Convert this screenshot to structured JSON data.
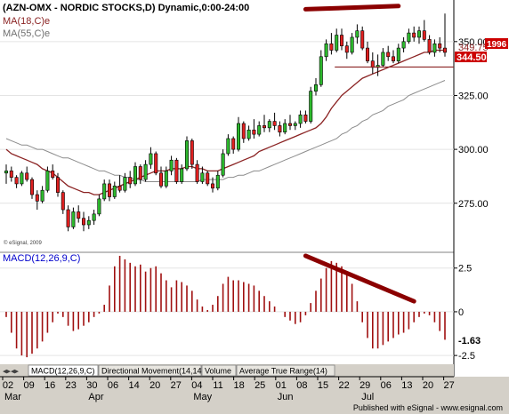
{
  "chart_data": [
    {
      "type": "candlestick",
      "title": "(AZN-OMX - NORDIC STOCKS,D) Dynamic,0:00-24:00",
      "ylim": [
        258,
        366
      ],
      "y_ticks": [
        {
          "value": 350,
          "label": "350.00"
        },
        {
          "value": 325,
          "label": "325.00"
        },
        {
          "value": 300,
          "label": "300.00"
        },
        {
          "value": 275,
          "label": "275.00"
        }
      ],
      "price_labels": [
        {
          "value": 347.4,
          "label": "349.75",
          "color": "#8b2323"
        },
        {
          "value": 346.2,
          "label": "344.50",
          "color": "#cc0000",
          "text_color": "#ffffff"
        },
        {
          "value": 349.1,
          "label": "1996",
          "color": "#cc0000",
          "text_color": "#ffffff"
        }
      ],
      "legend": [
        {
          "label": "MA(18,C)e",
          "color": "#8b2323"
        },
        {
          "label": "MA(55,C)e",
          "color": "#808080"
        }
      ],
      "watermark": "© eSignal, 2009",
      "candles": [
        [
          289,
          293,
          284,
          290
        ],
        [
          290,
          292,
          285,
          287
        ],
        [
          287,
          288,
          282,
          284
        ],
        [
          284,
          290,
          283,
          289
        ],
        [
          289,
          292,
          285,
          286
        ],
        [
          286,
          287,
          277,
          279
        ],
        [
          279,
          281,
          272,
          276
        ],
        [
          276,
          283,
          275,
          281
        ],
        [
          281,
          292,
          280,
          290
        ],
        [
          290,
          293,
          286,
          287
        ],
        [
          287,
          289,
          278,
          280
        ],
        [
          280,
          281,
          270,
          272
        ],
        [
          272,
          274,
          262,
          264
        ],
        [
          264,
          273,
          263,
          271
        ],
        [
          271,
          274,
          266,
          268
        ],
        [
          268,
          271,
          262,
          265
        ],
        [
          265,
          269,
          263,
          267
        ],
        [
          267,
          272,
          265,
          270
        ],
        [
          270,
          279,
          269,
          277
        ],
        [
          277,
          286,
          276,
          284
        ],
        [
          284,
          286,
          276,
          278
        ],
        [
          278,
          285,
          277,
          283
        ],
        [
          283,
          288,
          280,
          281
        ],
        [
          281,
          289,
          280,
          287
        ],
        [
          287,
          290,
          282,
          284
        ],
        [
          284,
          294,
          283,
          292
        ],
        [
          292,
          293,
          284,
          286
        ],
        [
          286,
          295,
          285,
          293
        ],
        [
          293,
          301,
          291,
          298
        ],
        [
          298,
          299,
          288,
          289
        ],
        [
          289,
          292,
          282,
          283
        ],
        [
          283,
          292,
          282,
          290
        ],
        [
          290,
          297,
          288,
          295
        ],
        [
          295,
          296,
          284,
          285
        ],
        [
          285,
          293,
          284,
          291
        ],
        [
          291,
          306,
          290,
          304
        ],
        [
          304,
          305,
          291,
          293
        ],
        [
          293,
          295,
          284,
          285
        ],
        [
          285,
          292,
          284,
          289
        ],
        [
          289,
          290,
          283,
          284
        ],
        [
          284,
          287,
          280,
          282
        ],
        [
          282,
          290,
          281,
          288
        ],
        [
          288,
          300,
          287,
          298
        ],
        [
          298,
          307,
          297,
          305
        ],
        [
          305,
          306,
          298,
          300
        ],
        [
          300,
          315,
          299,
          312
        ],
        [
          312,
          313,
          303,
          305
        ],
        [
          305,
          311,
          304,
          309
        ],
        [
          309,
          314,
          305,
          307
        ],
        [
          307,
          313,
          306,
          311
        ],
        [
          311,
          316,
          308,
          310
        ],
        [
          310,
          314,
          308,
          313
        ],
        [
          313,
          317,
          309,
          311
        ],
        [
          311,
          313,
          306,
          308
        ],
        [
          308,
          314,
          307,
          312
        ],
        [
          312,
          316,
          309,
          311
        ],
        [
          311,
          313,
          309,
          312
        ],
        [
          312,
          318,
          310,
          316
        ],
        [
          316,
          318,
          312,
          313
        ],
        [
          313,
          329,
          312,
          327
        ],
        [
          327,
          333,
          325,
          330
        ],
        [
          330,
          346,
          329,
          343
        ],
        [
          343,
          351,
          341,
          349
        ],
        [
          349,
          354,
          344,
          346
        ],
        [
          346,
          356,
          345,
          353
        ],
        [
          353,
          356,
          346,
          348
        ],
        [
          348,
          350,
          342,
          345
        ],
        [
          345,
          354,
          344,
          352
        ],
        [
          352,
          358,
          349,
          355
        ],
        [
          355,
          357,
          346,
          347
        ],
        [
          347,
          350,
          340,
          341
        ],
        [
          341,
          345,
          335,
          338
        ],
        [
          338,
          344,
          334,
          339
        ],
        [
          339,
          347,
          338,
          345
        ],
        [
          345,
          348,
          341,
          343
        ],
        [
          343,
          346,
          340,
          341
        ],
        [
          341,
          349,
          340,
          347
        ],
        [
          347,
          352,
          345,
          350
        ],
        [
          350,
          356,
          349,
          354
        ],
        [
          354,
          357,
          350,
          352
        ],
        [
          352,
          357,
          349,
          355
        ],
        [
          355,
          360,
          350,
          351
        ],
        [
          351,
          353,
          344,
          345
        ],
        [
          345,
          351,
          343,
          349
        ],
        [
          349,
          352,
          345,
          347
        ],
        [
          347,
          363,
          343,
          345
        ]
      ],
      "ma18": [
        300,
        298,
        297,
        296,
        295,
        294,
        293,
        291,
        290,
        289,
        287,
        285,
        283,
        282,
        281,
        280,
        280,
        279,
        279,
        280,
        281,
        282,
        283,
        284,
        285,
        286,
        287,
        288,
        289,
        290,
        290,
        290,
        291,
        291,
        291,
        292,
        292,
        291,
        291,
        290,
        290,
        290,
        291,
        292,
        293,
        294,
        295,
        296,
        297,
        299,
        300,
        301,
        302,
        303,
        304,
        305,
        306,
        307,
        308,
        309,
        310,
        312,
        315,
        319,
        322,
        325,
        327,
        329,
        331,
        333,
        334,
        335,
        336,
        337,
        338,
        339,
        340,
        341,
        342,
        343,
        344,
        345,
        345,
        346,
        346,
        346
      ],
      "ma55": [
        305,
        304,
        303,
        302,
        302,
        301,
        300,
        300,
        299,
        298,
        297,
        296,
        296,
        295,
        294,
        293,
        292,
        291,
        290,
        290,
        289,
        288,
        288,
        287,
        287,
        286,
        286,
        285,
        285,
        285,
        285,
        285,
        285,
        285,
        285,
        285,
        285,
        285,
        286,
        286,
        286,
        286,
        286,
        287,
        287,
        288,
        288,
        289,
        290,
        290,
        291,
        292,
        293,
        294,
        295,
        296,
        297,
        298,
        299,
        300,
        301,
        302,
        303,
        304,
        305,
        307,
        308,
        310,
        311,
        313,
        314,
        316,
        317,
        318,
        320,
        321,
        322,
        323,
        325,
        326,
        327,
        328,
        329,
        330,
        331,
        332
      ],
      "support_line": {
        "value": 338.2,
        "from_index": 64
      },
      "trendline": {
        "from": [
          58,
          365
        ],
        "to": [
          76,
          366.5
        ]
      }
    },
    {
      "type": "bar",
      "title": "MACD(12,26,9,C)",
      "ylim": [
        -2.9,
        3.3
      ],
      "y_ticks": [
        {
          "value": 2.5,
          "label": "2.5"
        },
        {
          "value": 0,
          "label": "0"
        },
        {
          "value": -2.5,
          "label": "-2.5"
        }
      ],
      "last_value": {
        "value": -1.63,
        "label": "-1.63"
      },
      "values": [
        -0.3,
        -1.2,
        -2.1,
        -2.5,
        -2.6,
        -2.4,
        -2.1,
        -1.7,
        -1.2,
        -0.6,
        -0.1,
        -0.3,
        -0.8,
        -1.1,
        -1.0,
        -0.8,
        -0.6,
        -0.3,
        -0.1,
        0.4,
        1.5,
        2.6,
        3.2,
        3.0,
        2.8,
        2.6,
        2.7,
        2.3,
        2.5,
        2.6,
        2.2,
        1.8,
        1.4,
        1.8,
        1.7,
        1.5,
        1.2,
        0.7,
        0.3,
        0.1,
        0.4,
        0.9,
        1.6,
        2.0,
        1.8,
        1.8,
        1.7,
        1.6,
        1.5,
        1.2,
        0.9,
        0.6,
        0.3,
        0.0,
        -0.3,
        -0.5,
        -0.7,
        -0.6,
        -0.2,
        0.5,
        1.2,
        1.9,
        2.5,
        2.9,
        2.8,
        2.6,
        2.3,
        1.6,
        0.6,
        -0.6,
        -1.5,
        -2.1,
        -2.1,
        -1.9,
        -1.7,
        -1.5,
        -1.3,
        -1.2,
        -1.0,
        -0.6,
        -0.3,
        -0.1,
        -0.2,
        -0.6,
        -1.1,
        -1.6
      ],
      "trendline": {
        "from": [
          58,
          3.2
        ],
        "to": [
          79,
          0.6
        ]
      }
    }
  ],
  "tabs": [
    {
      "label": "MACD(12,26,9,C)",
      "active": true
    },
    {
      "label": "Directional Movement(14,14)",
      "active": false
    },
    {
      "label": "Volume",
      "active": false
    },
    {
      "label": "Average True Range(14)",
      "active": false
    }
  ],
  "x_axis": {
    "day_ticks": [
      {
        "i": 0,
        "label": "02"
      },
      {
        "i": 5,
        "label": "09"
      },
      {
        "i": 10,
        "label": "16"
      },
      {
        "i": 15,
        "label": "23"
      },
      {
        "i": 20,
        "label": "30"
      },
      {
        "i": 24,
        "label": "06"
      },
      {
        "i": 28,
        "label": "14"
      },
      {
        "i": 33,
        "label": "20"
      },
      {
        "i": 38,
        "label": "27"
      },
      {
        "i": 41,
        "label": "04"
      },
      {
        "i": 46,
        "label": "11"
      },
      {
        "i": 51,
        "label": "18"
      },
      {
        "i": 56,
        "label": "25"
      },
      {
        "i": 60,
        "label": "01"
      },
      {
        "i": 65,
        "label": "08"
      },
      {
        "i": 70,
        "label": "15"
      },
      {
        "i": 75,
        "label": "22"
      },
      {
        "i": 80,
        "label": "29"
      },
      {
        "i": 84,
        "label": "06"
      }
    ],
    "month_labels": [
      {
        "i": 0,
        "label": "Mar"
      },
      {
        "i": 20,
        "label": "Apr"
      },
      {
        "i": 41,
        "label": "May"
      },
      {
        "i": 60,
        "label": "Jun"
      },
      {
        "i": 80,
        "label": "Jul"
      }
    ]
  },
  "day_labels_actual": [
    "02",
    "09",
    "16",
    "23",
    "30",
    "06",
    "14",
    "20",
    "27",
    "04",
    "11",
    "18",
    "25",
    "01",
    "08",
    "15",
    "22",
    "29",
    "06",
    "13",
    "20",
    "27"
  ],
  "published": "Published with eSignal - www.esignal.com"
}
